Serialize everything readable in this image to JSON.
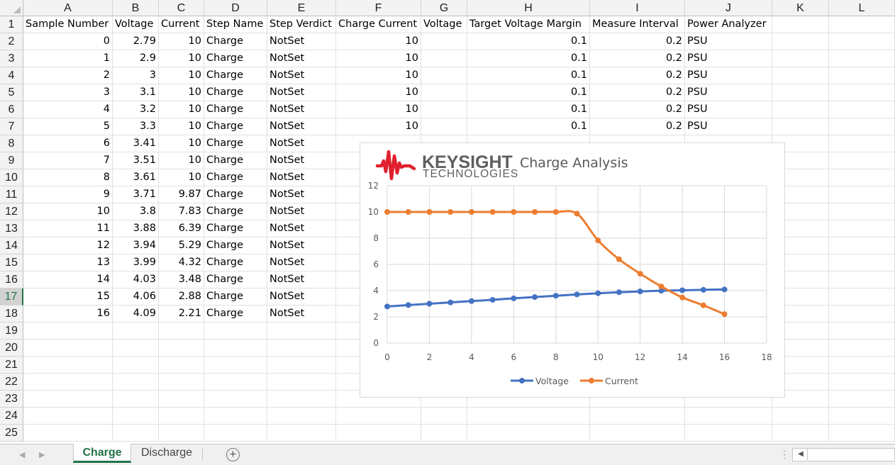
{
  "columns": [
    {
      "letter": "A",
      "header": "Sample Number"
    },
    {
      "letter": "B",
      "header": "Voltage"
    },
    {
      "letter": "C",
      "header": "Current"
    },
    {
      "letter": "D",
      "header": "Step Name"
    },
    {
      "letter": "E",
      "header": "Step Verdict"
    },
    {
      "letter": "F",
      "header": "Charge Current"
    },
    {
      "letter": "G",
      "header": "Voltage"
    },
    {
      "letter": "H",
      "header": "Target Voltage Margin"
    },
    {
      "letter": "I",
      "header": "Measure Interval"
    },
    {
      "letter": "J",
      "header": "Power Analyzer"
    },
    {
      "letter": "K",
      "header": ""
    },
    {
      "letter": "L",
      "header": ""
    }
  ],
  "row_numbers": [
    "1",
    "2",
    "3",
    "4",
    "5",
    "6",
    "7",
    "8",
    "9",
    "10",
    "11",
    "12",
    "13",
    "14",
    "15",
    "16",
    "17",
    "18",
    "19",
    "20",
    "21",
    "22",
    "23",
    "24",
    "25"
  ],
  "selected_row": "17",
  "rows": [
    [
      "0",
      "2.79",
      "10",
      "Charge",
      "NotSet",
      "10",
      "",
      "0.1",
      "0.2",
      "PSU"
    ],
    [
      "1",
      "2.9",
      "10",
      "Charge",
      "NotSet",
      "10",
      "",
      "0.1",
      "0.2",
      "PSU"
    ],
    [
      "2",
      "3",
      "10",
      "Charge",
      "NotSet",
      "10",
      "",
      "0.1",
      "0.2",
      "PSU"
    ],
    [
      "3",
      "3.1",
      "10",
      "Charge",
      "NotSet",
      "10",
      "",
      "0.1",
      "0.2",
      "PSU"
    ],
    [
      "4",
      "3.2",
      "10",
      "Charge",
      "NotSet",
      "10",
      "",
      "0.1",
      "0.2",
      "PSU"
    ],
    [
      "5",
      "3.3",
      "10",
      "Charge",
      "NotSet",
      "10",
      "",
      "0.1",
      "0.2",
      "PSU"
    ],
    [
      "6",
      "3.41",
      "10",
      "Charge",
      "NotSet",
      "",
      "",
      "",
      "",
      ""
    ],
    [
      "7",
      "3.51",
      "10",
      "Charge",
      "NotSet",
      "",
      "",
      "",
      "",
      ""
    ],
    [
      "8",
      "3.61",
      "10",
      "Charge",
      "NotSet",
      "",
      "",
      "",
      "",
      ""
    ],
    [
      "9",
      "3.71",
      "9.87",
      "Charge",
      "NotSet",
      "",
      "",
      "",
      "",
      ""
    ],
    [
      "10",
      "3.8",
      "7.83",
      "Charge",
      "NotSet",
      "",
      "",
      "",
      "",
      ""
    ],
    [
      "11",
      "3.88",
      "6.39",
      "Charge",
      "NotSet",
      "",
      "",
      "",
      "",
      ""
    ],
    [
      "12",
      "3.94",
      "5.29",
      "Charge",
      "NotSet",
      "",
      "",
      "",
      "",
      ""
    ],
    [
      "13",
      "3.99",
      "4.32",
      "Charge",
      "NotSet",
      "",
      "",
      "",
      "",
      ""
    ],
    [
      "14",
      "4.03",
      "3.48",
      "Charge",
      "NotSet",
      "",
      "",
      "",
      "",
      ""
    ],
    [
      "15",
      "4.06",
      "2.88",
      "Charge",
      "NotSet",
      "",
      "",
      "",
      "",
      ""
    ],
    [
      "16",
      "4.09",
      "2.21",
      "Charge",
      "NotSet",
      "",
      "",
      "",
      "",
      ""
    ]
  ],
  "chart": {
    "brand_main": "KEYSIGHT",
    "brand_sub": "TECHNOLOGIES",
    "brand_color": "#e0202e"
  },
  "chart_data": {
    "type": "scatter",
    "title": "Charge Analysis",
    "xlabel": "",
    "ylabel": "",
    "xlim": [
      0,
      18
    ],
    "ylim": [
      0,
      12
    ],
    "x_ticks": [
      "0",
      "2",
      "4",
      "6",
      "8",
      "10",
      "12",
      "14",
      "16",
      "18"
    ],
    "y_ticks": [
      "0",
      "2",
      "4",
      "6",
      "8",
      "10",
      "12"
    ],
    "grid": true,
    "legend_position": "bottom",
    "x": [
      0,
      1,
      2,
      3,
      4,
      5,
      6,
      7,
      8,
      9,
      10,
      11,
      12,
      13,
      14,
      15,
      16
    ],
    "series": [
      {
        "name": "Voltage",
        "color": "#4472c4",
        "values": [
          2.79,
          2.9,
          3,
          3.1,
          3.2,
          3.3,
          3.41,
          3.51,
          3.61,
          3.71,
          3.8,
          3.88,
          3.94,
          3.99,
          4.03,
          4.06,
          4.09
        ]
      },
      {
        "name": "Current",
        "color": "#ed7d31",
        "values": [
          10,
          10,
          10,
          10,
          10,
          10,
          10,
          10,
          10,
          9.87,
          7.83,
          6.39,
          5.29,
          4.32,
          3.48,
          2.88,
          2.21
        ]
      }
    ]
  },
  "tabs": [
    {
      "label": "Charge",
      "active": true
    },
    {
      "label": "Discharge",
      "active": false
    }
  ],
  "add_sheet_symbol": "+",
  "nav_prev_symbol": "◀",
  "nav_next_symbol": "▶",
  "scroll_left_symbol": "◀",
  "dots_symbol": "⋮"
}
